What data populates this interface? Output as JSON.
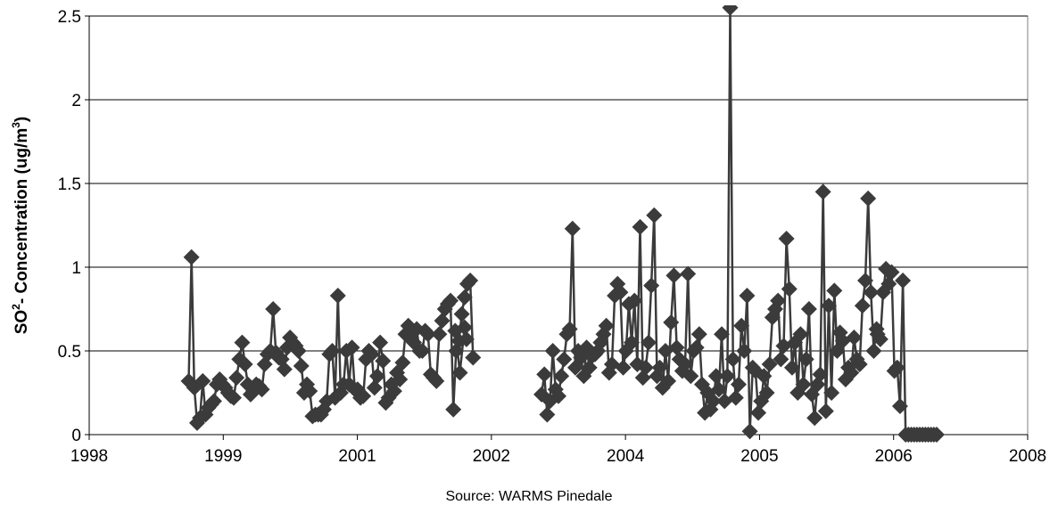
{
  "chart_data": {
    "type": "line",
    "title": "",
    "xlabel": "",
    "ylabel": {
      "main": "SO",
      "sup1": "2",
      "mid": "- Concentration  (ug/m",
      "sup2": "3",
      "end": ")"
    },
    "xlim": [
      1998,
      2008
    ],
    "ylim": [
      0,
      2.5
    ],
    "xticks": [
      "1998",
      "1999",
      "2001",
      "2002",
      "2004",
      "2005",
      "2006",
      "2008"
    ],
    "yticks": [
      "0",
      "0.5",
      "1",
      "1.5",
      "2",
      "2.5"
    ],
    "grid": true,
    "legend": "none",
    "series_color": "#3b3b3b",
    "series": [
      {
        "segments": [
          {
            "x": [
              1999.06,
              1999.09,
              1999.12,
              1999.15,
              1999.18,
              1999.21,
              1999.24,
              1999.27,
              1999.3,
              1999.33,
              1999.36,
              1999.39,
              1999.42,
              1999.45,
              1999.48,
              1999.51,
              1999.54,
              1999.57,
              1999.6,
              1999.63,
              1999.66,
              1999.69,
              1999.72,
              1999.75,
              1999.78,
              1999.81,
              1999.84,
              1999.87,
              1999.9,
              1999.93,
              1999.96,
              1999.99,
              2000.02,
              2000.05,
              2000.08,
              2000.11,
              2000.14,
              2000.17,
              2000.2,
              2000.23,
              2000.26,
              2000.29,
              2000.32,
              2000.35,
              2000.38,
              2000.41,
              2000.44,
              2000.47,
              2000.5,
              2000.53,
              2000.56,
              2000.59,
              2000.62,
              2000.65,
              2000.68,
              2000.71,
              2000.74,
              2000.77,
              2000.8,
              2000.83,
              2000.86,
              2000.89,
              2000.92,
              2000.95,
              2000.98,
              2001.01,
              2001.04,
              2001.07,
              2001.1,
              2001.13,
              2001.16,
              2001.19,
              2001.22,
              2001.25,
              2001.28,
              2001.31,
              2001.34,
              2001.37,
              2001.4,
              2001.43,
              2001.46,
              2001.49,
              2001.52
            ],
            "y": [
              0.32,
              1.06,
              0.28,
              0.07,
              0.1,
              0.32,
              0.12,
              0.16,
              0.18,
              0.2,
              0.3,
              0.33,
              0.3,
              0.28,
              0.25,
              0.23,
              0.22,
              0.34,
              0.45,
              0.55,
              0.42,
              0.3,
              0.24,
              0.26,
              0.3,
              0.29,
              0.27,
              0.42,
              0.48,
              0.5,
              0.75,
              0.49,
              0.46,
              0.45,
              0.39,
              0.52,
              0.58,
              0.55,
              0.53,
              0.5,
              0.41,
              0.25,
              0.3,
              0.26,
              0.11,
              0.12,
              0.12,
              0.12,
              0.15,
              0.2,
              0.48,
              0.5,
              0.22,
              0.83,
              0.25,
              0.3,
              0.5,
              0.3,
              0.52,
              0.27,
              0.27,
              0.22,
              0.23,
              0.45,
              0.5,
              0.48,
              0.28,
              0.35,
              0.55,
              0.44,
              0.19,
              0.22,
              0.3,
              0.26,
              0.37,
              0.33,
              0.43,
              0.6,
              0.65,
              0.57,
              0.55,
              0.63,
              0.5
            ]
          },
          {
            "x": [
              2001.55,
              2001.58,
              2001.61,
              2001.64,
              2001.67,
              2001.7,
              2001.73,
              2001.76,
              2001.79,
              2001.82,
              2001.85,
              2001.88,
              2001.91,
              2001.94,
              2001.97,
              2002.0,
              2002.03,
              2002.06,
              2002.09
            ],
            "y": [
              0.5,
              0.62,
              0.6,
              0.36,
              0.34,
              0.32,
              0.6,
              0.68,
              0.75,
              0.78,
              0.8,
              0.15,
              0.5,
              0.56,
              0.72,
              0.82,
              0.9,
              0.92,
              0.46
            ]
          },
          {
            "x": [
              2001.9,
              2001.95,
              2002.0,
              2002.02
            ],
            "y": [
              0.62,
              0.37,
              0.64,
              0.57
            ]
          },
          {
            "x": [
              2002.82,
              2002.85,
              2002.88,
              2002.91,
              2002.94,
              2002.97,
              2003.0,
              2003.03,
              2003.06,
              2003.09,
              2003.12,
              2003.15,
              2003.18,
              2003.21,
              2003.24,
              2003.27,
              2003.3,
              2003.33,
              2003.36,
              2003.39,
              2003.42,
              2003.45,
              2003.48,
              2003.51,
              2003.54,
              2003.57,
              2003.6,
              2003.63,
              2003.66,
              2003.69,
              2003.72,
              2003.75,
              2003.78,
              2003.81,
              2003.84,
              2003.87,
              2003.9,
              2003.93,
              2003.96,
              2003.99,
              2004.02,
              2004.05,
              2004.08,
              2004.11,
              2004.14,
              2004.17,
              2004.2,
              2004.23,
              2004.26,
              2004.29,
              2004.32,
              2004.35,
              2004.38,
              2004.41,
              2004.44,
              2004.47,
              2004.5,
              2004.53,
              2004.56,
              2004.59,
              2004.62,
              2004.65,
              2004.68,
              2004.71,
              2004.74,
              2004.77,
              2004.8,
              2004.83,
              2004.86,
              2004.89,
              2004.92,
              2004.95,
              2004.98,
              2005.01,
              2005.04,
              2005.07,
              2005.1,
              2005.13,
              2005.16,
              2005.19,
              2005.22,
              2005.25,
              2005.28,
              2005.31,
              2005.34,
              2005.37,
              2005.4,
              2005.43,
              2005.46,
              2005.49,
              2005.52,
              2005.55,
              2005.58,
              2005.61,
              2005.64,
              2005.67,
              2005.7,
              2005.73,
              2005.76,
              2005.79,
              2005.82,
              2005.85,
              2005.88,
              2005.91,
              2005.94,
              2005.97,
              2006.0,
              2006.03,
              2006.06,
              2006.09,
              2006.12,
              2006.15,
              2006.18,
              2006.21,
              2006.24,
              2006.27,
              2006.3,
              2006.33,
              2006.36,
              2006.39
            ],
            "y": [
              0.24,
              0.36,
              0.12,
              0.2,
              0.5,
              0.27,
              0.23,
              0.35,
              0.45,
              0.6,
              0.63,
              1.23,
              0.4,
              0.5,
              0.46,
              0.35,
              0.52,
              0.4,
              0.47,
              0.48,
              0.5,
              0.55,
              0.6,
              0.65,
              0.37,
              0.42,
              0.83,
              0.9,
              0.85,
              0.4,
              0.5,
              0.78,
              0.55,
              0.8,
              0.42,
              1.24,
              0.34,
              0.4,
              0.55,
              0.89,
              1.31,
              0.35,
              0.4,
              0.28,
              0.5,
              0.32,
              0.67,
              0.95,
              0.52,
              0.45,
              0.38,
              0.42,
              0.96,
              0.35,
              0.5,
              0.52,
              0.6,
              0.3,
              0.13,
              0.25,
              0.15,
              0.2,
              0.35,
              0.27,
              0.6,
              0.2,
              0.35,
              2.55,
              0.45,
              0.22,
              0.3,
              0.65,
              0.5,
              0.83,
              0.02,
              0.4,
              0.38,
              0.13,
              0.2,
              0.35,
              0.25,
              0.42,
              0.7,
              0.75,
              0.8,
              0.45,
              0.53,
              1.17,
              0.87,
              0.4,
              0.55,
              0.25,
              0.6,
              0.3,
              0.45,
              0.75,
              0.24,
              0.1,
              0.3,
              0.36,
              1.45,
              0.14,
              0.77,
              0.25,
              0.86,
              0.5,
              0.61,
              0.56,
              0.33,
              0.4,
              0.37,
              0.58,
              0.45,
              0.42,
              0.77,
              0.92,
              1.41,
              0.85,
              0.5,
              0.63
            ]
          },
          {
            "x": [
              2006.4,
              2006.43,
              2006.46,
              2006.49,
              2006.52,
              2006.55,
              2006.58,
              2006.61,
              2006.64,
              2006.67,
              2006.7,
              2006.73,
              2006.76,
              2006.79,
              2006.82,
              2006.85,
              2006.88,
              2006.91,
              2006.94,
              2006.97,
              2007.0,
              2007.03
            ],
            "y": [
              0.6,
              0.57,
              0.85,
              0.99,
              0.9,
              0.97,
              0.38,
              0.4,
              0.17,
              0.92,
              0.0,
              0.0,
              0.0,
              0.0,
              0.0,
              0.0,
              0.0,
              0.0,
              0.0,
              0.0,
              0.0,
              0.0
            ]
          }
        ]
      }
    ]
  },
  "footer": {
    "source": "Source:  WARMS Pinedale"
  }
}
